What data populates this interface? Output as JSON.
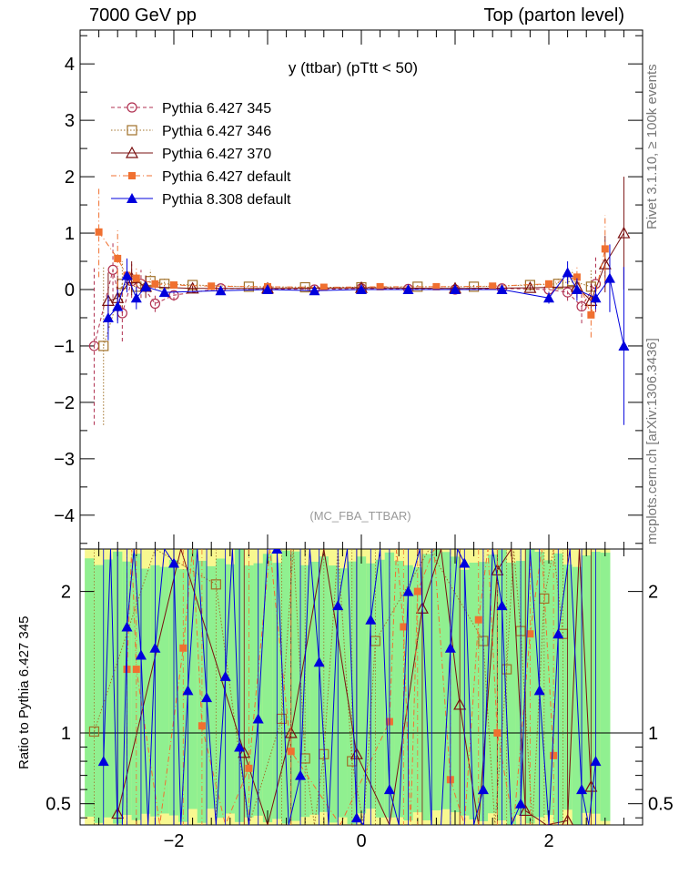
{
  "header": {
    "left_title": "7000 GeV pp",
    "right_title": "Top (parton level)"
  },
  "side_text": {
    "rivet": "Rivet 3.1.10, ≥ 100k events",
    "mcplots": "mcplots.cern.ch [arXiv:1306.3436]"
  },
  "colors": {
    "p345": "#b03050",
    "p346": "#a07028",
    "p370": "#7a1010",
    "pdefault": "#f07030",
    "p8": "#0000dd",
    "band_green": "#90f090",
    "band_yellow": "#f8f890"
  },
  "chart_data": {
    "type": "scatter",
    "title": "y (ttbar) (pTtt < 50)",
    "analysis_tag": "(MC_FBA_TTBAR)",
    "xlabel": "",
    "ylabel": "",
    "xlim": [
      -3,
      3
    ],
    "ylim": [
      -4.6,
      4.6
    ],
    "yticks": [
      -4,
      -3,
      -2,
      -1,
      0,
      1,
      2,
      3,
      4
    ],
    "xticks": [
      -2,
      0,
      2
    ],
    "legend_position": "top-left",
    "series": [
      {
        "name": "Pythia 6.427 345",
        "marker": "open-circle",
        "line": "dashed",
        "x": [
          -2.85,
          -2.65,
          -2.55,
          -2.45,
          -2.35,
          -2.2,
          -2.0,
          -1.5,
          -1.0,
          -0.5,
          0.0,
          0.5,
          1.0,
          1.5,
          2.0,
          2.2,
          2.35,
          2.5
        ],
        "y": [
          -1.0,
          0.35,
          -0.42,
          0.15,
          0.1,
          -0.25,
          -0.1,
          0.02,
          0.01,
          0.0,
          0.02,
          0.01,
          0.0,
          0.02,
          0.0,
          -0.05,
          -0.3,
          0.1
        ],
        "yerr": [
          1.4,
          0.5,
          0.5,
          0.3,
          0.25,
          0.15,
          0.1,
          0.05,
          0.05,
          0.05,
          0.05,
          0.05,
          0.05,
          0.05,
          0.1,
          0.15,
          0.3,
          0.5
        ]
      },
      {
        "name": "Pythia 6.427 346",
        "marker": "open-square",
        "line": "dotted",
        "x": [
          -2.75,
          -2.55,
          -2.4,
          -2.25,
          -2.1,
          -1.8,
          -1.2,
          -0.6,
          0.0,
          0.6,
          1.2,
          1.8,
          2.1,
          2.25,
          2.45
        ],
        "y": [
          -1.0,
          0.1,
          0.05,
          0.15,
          0.1,
          0.08,
          0.05,
          0.04,
          0.04,
          0.05,
          0.05,
          0.08,
          0.1,
          0.15,
          0.05
        ],
        "yerr": [
          1.4,
          0.4,
          0.25,
          0.2,
          0.1,
          0.05,
          0.05,
          0.05,
          0.05,
          0.05,
          0.05,
          0.05,
          0.1,
          0.2,
          0.3
        ]
      },
      {
        "name": "Pythia 6.427 370",
        "marker": "open-triangle",
        "line": "solid",
        "x": [
          -2.7,
          -2.6,
          -2.45,
          -2.3,
          -1.8,
          -1.0,
          0.0,
          1.0,
          1.8,
          2.3,
          2.45,
          2.6,
          2.8
        ],
        "y": [
          -0.2,
          -0.15,
          0.2,
          0.05,
          0.02,
          0.02,
          0.03,
          0.02,
          0.03,
          0.05,
          -0.2,
          0.45,
          1.0
        ],
        "yerr": [
          0.5,
          0.4,
          0.3,
          0.2,
          0.05,
          0.05,
          0.05,
          0.05,
          0.05,
          0.2,
          0.3,
          0.5,
          1.0
        ]
      },
      {
        "name": "Pythia 6.427 default",
        "marker": "filled-square",
        "line": "dashdot",
        "x": [
          -2.8,
          -2.6,
          -2.5,
          -2.4,
          -2.2,
          -2.0,
          -1.6,
          -1.0,
          -0.4,
          0.2,
          0.8,
          1.4,
          2.0,
          2.3,
          2.45,
          2.6
        ],
        "y": [
          1.02,
          0.55,
          0.25,
          0.2,
          0.1,
          0.08,
          0.06,
          0.05,
          0.04,
          0.05,
          0.05,
          0.06,
          0.1,
          0.22,
          -0.45,
          0.72
        ],
        "yerr": [
          0.8,
          0.5,
          0.3,
          0.2,
          0.1,
          0.05,
          0.05,
          0.05,
          0.05,
          0.05,
          0.05,
          0.05,
          0.1,
          0.2,
          0.4,
          0.6
        ]
      },
      {
        "name": "Pythia 8.308 default",
        "marker": "filled-triangle",
        "line": "solid",
        "x": [
          -2.7,
          -2.6,
          -2.5,
          -2.4,
          -2.3,
          -2.1,
          -1.5,
          -1.0,
          -0.5,
          0.0,
          0.5,
          1.0,
          1.5,
          2.0,
          2.2,
          2.3,
          2.5,
          2.65,
          2.8
        ],
        "y": [
          -0.5,
          -0.3,
          0.25,
          -0.15,
          0.05,
          -0.05,
          -0.02,
          0.0,
          -0.02,
          0.0,
          0.0,
          0.0,
          0.0,
          -0.15,
          0.3,
          0.0,
          -0.15,
          0.2,
          -1.0
        ],
        "yerr": [
          0.4,
          0.3,
          0.3,
          0.2,
          0.1,
          0.08,
          0.05,
          0.05,
          0.05,
          0.05,
          0.05,
          0.05,
          0.05,
          0.1,
          0.2,
          0.2,
          0.2,
          0.6,
          1.4
        ]
      }
    ],
    "ratio_panel": {
      "ylabel": "Ratio to Pythia 6.427 345",
      "ylim": [
        0.35,
        2.3
      ],
      "yticks": [
        0.5,
        1,
        2
      ],
      "ytick_labels": [
        "0.5",
        "1",
        "2"
      ],
      "reference_line": 1,
      "points": [
        {
          "series": 1,
          "x": [
            -2.85,
            -1.55,
            -0.85,
            -0.6,
            -0.4,
            -0.1,
            0.15,
            1.3,
            1.55,
            1.7,
            1.95,
            2.15
          ],
          "y": [
            1.01,
            2.05,
            1.1,
            0.82,
            0.85,
            0.8,
            1.65,
            1.65,
            1.45,
            1.72,
            1.95,
            1.7
          ]
        },
        {
          "series": 2,
          "x": [
            -2.6,
            -1.25,
            -0.75,
            -0.05,
            0.65,
            1.05,
            1.45,
            1.75,
            2.2,
            2.45
          ],
          "y": [
            0.43,
            0.86,
            1.0,
            0.85,
            1.88,
            1.2,
            2.15,
            0.45,
            0.38,
            0.62
          ]
        },
        {
          "series": 3,
          "x": [
            -2.5,
            -2.4,
            -1.9,
            -1.7,
            -1.2,
            -0.75,
            0.3,
            0.45,
            0.6,
            0.95,
            1.25,
            1.45,
            1.8,
            2.05
          ],
          "y": [
            1.45,
            1.45,
            1.6,
            1.05,
            0.75,
            0.87,
            1.08,
            1.75,
            2.0,
            0.67,
            1.8,
            1.0,
            1.7,
            0.84
          ]
        },
        {
          "series": 4,
          "x": [
            -2.75,
            -2.6,
            -2.5,
            -2.35,
            -2.2,
            -2.0,
            -1.85,
            -1.65,
            -1.45,
            -1.3,
            -1.1,
            -0.9,
            -0.65,
            -0.45,
            -0.25,
            -0.05,
            0.1,
            0.3,
            0.5,
            0.75,
            0.95,
            1.1,
            1.3,
            1.5,
            1.7,
            1.9,
            2.1,
            2.35,
            2.5
          ],
          "y": [
            0.8,
            0.3,
            1.75,
            1.55,
            1.6,
            2.2,
            1.3,
            1.25,
            1.4,
            0.9,
            1.1,
            2.3,
            0.7,
            1.5,
            1.9,
            0.4,
            1.8,
            0.6,
            2.0,
            0.3,
            1.6,
            2.2,
            0.6,
            1.9,
            0.5,
            1.3,
            1.7,
            0.6,
            0.8
          ]
        }
      ]
    }
  }
}
